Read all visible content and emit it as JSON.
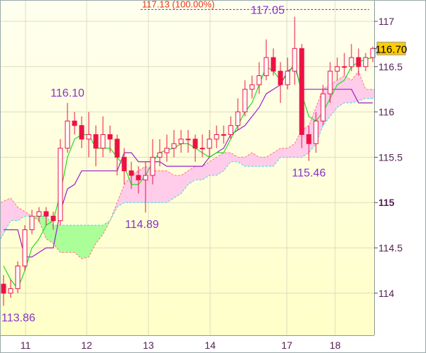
{
  "chart_data": {
    "type": "candlestick",
    "title": "",
    "ylim": [
      113.65,
      117.23
    ],
    "y_ticks": [
      {
        "value": 117,
        "label": "117",
        "bold": false
      },
      {
        "value": 116.5,
        "label": "116.5",
        "bold": false
      },
      {
        "value": 116,
        "label": "116",
        "bold": false
      },
      {
        "value": 115.5,
        "label": "115.5",
        "bold": false
      },
      {
        "value": 115,
        "label": "115",
        "bold": true
      },
      {
        "value": 114.5,
        "label": "114.5",
        "bold": false
      },
      {
        "value": 114,
        "label": "114",
        "bold": false
      }
    ],
    "x_ticks": [
      {
        "index": 3.1,
        "label": "11"
      },
      {
        "index": 11.7,
        "label": "12"
      },
      {
        "index": 20.4,
        "label": "13"
      },
      {
        "index": 29.1,
        "label": "14"
      },
      {
        "index": 39.9,
        "label": "17"
      },
      {
        "index": 46.7,
        "label": "18"
      }
    ],
    "grid": true,
    "candles": [
      [
        114.1,
        114.2,
        113.86,
        114.0
      ],
      [
        114.0,
        114.15,
        113.95,
        114.05
      ],
      [
        114.05,
        114.35,
        114.0,
        114.3
      ],
      [
        114.3,
        114.75,
        114.25,
        114.7
      ],
      [
        114.7,
        114.92,
        114.65,
        114.85
      ],
      [
        114.85,
        114.95,
        114.78,
        114.9
      ],
      [
        114.9,
        114.95,
        114.75,
        114.85
      ],
      [
        114.85,
        114.9,
        114.7,
        114.8
      ],
      [
        114.8,
        115.7,
        114.75,
        115.6
      ],
      [
        115.6,
        116.1,
        115.55,
        115.9
      ],
      [
        115.9,
        116.0,
        115.75,
        115.85
      ],
      [
        115.85,
        115.95,
        115.6,
        115.7
      ],
      [
        115.7,
        116.0,
        115.5,
        115.75
      ],
      [
        115.75,
        115.85,
        115.4,
        115.6
      ],
      [
        115.6,
        115.95,
        115.5,
        115.75
      ],
      [
        115.75,
        115.85,
        115.55,
        115.7
      ],
      [
        115.7,
        115.75,
        115.3,
        115.5
      ],
      [
        115.5,
        115.6,
        115.2,
        115.35
      ],
      [
        115.35,
        115.45,
        115.15,
        115.3
      ],
      [
        115.3,
        115.4,
        115.1,
        115.25
      ],
      [
        115.25,
        115.45,
        114.89,
        115.3
      ],
      [
        115.3,
        115.7,
        115.2,
        115.5
      ],
      [
        115.5,
        115.7,
        115.4,
        115.55
      ],
      [
        115.55,
        115.75,
        115.45,
        115.6
      ],
      [
        115.6,
        115.8,
        115.5,
        115.65
      ],
      [
        115.65,
        115.8,
        115.55,
        115.7
      ],
      [
        115.7,
        115.8,
        115.55,
        115.7
      ],
      [
        115.7,
        115.75,
        115.45,
        115.6
      ],
      [
        115.6,
        115.75,
        115.5,
        115.6
      ],
      [
        115.6,
        115.8,
        115.5,
        115.7
      ],
      [
        115.7,
        115.85,
        115.6,
        115.75
      ],
      [
        115.75,
        115.85,
        115.65,
        115.75
      ],
      [
        115.75,
        115.95,
        115.7,
        115.85
      ],
      [
        115.85,
        116.15,
        115.8,
        116.0
      ],
      [
        116.0,
        116.35,
        115.95,
        116.25
      ],
      [
        116.25,
        116.4,
        116.15,
        116.3
      ],
      [
        116.3,
        116.55,
        116.2,
        116.4
      ],
      [
        116.4,
        116.8,
        116.35,
        116.6
      ],
      [
        116.6,
        116.7,
        116.4,
        116.45
      ],
      [
        116.45,
        116.55,
        116.1,
        116.3
      ],
      [
        116.3,
        116.6,
        116.25,
        116.45
      ],
      [
        116.45,
        117.05,
        116.3,
        116.7
      ],
      [
        116.7,
        116.75,
        115.6,
        115.75
      ],
      [
        115.75,
        115.85,
        115.46,
        115.65
      ],
      [
        115.65,
        116.0,
        115.55,
        115.9
      ],
      [
        115.9,
        116.3,
        115.85,
        116.2
      ],
      [
        116.2,
        116.55,
        116.1,
        116.45
      ],
      [
        116.45,
        116.6,
        116.35,
        116.5
      ],
      [
        116.5,
        116.65,
        116.4,
        116.5
      ],
      [
        116.5,
        116.75,
        116.45,
        116.6
      ],
      [
        116.6,
        116.7,
        116.4,
        116.5
      ],
      [
        116.5,
        116.65,
        116.45,
        116.6
      ],
      [
        116.6,
        116.72,
        116.55,
        116.7
      ]
    ],
    "tenkan": [
      114.3,
      114.15,
      114.05,
      114.25,
      114.5,
      114.6,
      114.75,
      114.8,
      115.1,
      115.5,
      115.7,
      115.75,
      115.75,
      115.6,
      115.6,
      115.6,
      115.5,
      115.4,
      115.2,
      115.2,
      115.3,
      115.45,
      115.55,
      115.58,
      115.6,
      115.65,
      115.65,
      115.6,
      115.55,
      115.5,
      115.55,
      115.55,
      115.7,
      115.85,
      116.0,
      116.1,
      116.3,
      116.5,
      116.45,
      116.35,
      116.4,
      116.55,
      116.2,
      115.95,
      115.9,
      116.0,
      116.15,
      116.3,
      116.35,
      116.5,
      116.55,
      116.58,
      116.6
    ],
    "kijun": [
      114.7,
      114.7,
      114.7,
      114.4,
      114.4,
      114.45,
      114.5,
      114.5,
      114.9,
      115.15,
      115.2,
      115.35,
      115.35,
      115.35,
      115.35,
      115.35,
      115.35,
      115.55,
      115.55,
      115.45,
      115.45,
      115.45,
      115.45,
      115.4,
      115.4,
      115.4,
      115.4,
      115.4,
      115.4,
      115.5,
      115.55,
      115.6,
      115.75,
      115.8,
      115.85,
      115.95,
      116.05,
      116.2,
      116.25,
      116.3,
      116.45,
      116.5,
      116.25,
      116.25,
      116.25,
      116.25,
      116.25,
      116.25,
      116.25,
      116.25,
      116.1,
      116.1,
      116.1
    ],
    "senkou_a": [
      115.0,
      115.05,
      114.95,
      114.9,
      114.85,
      114.8,
      114.6,
      114.55,
      114.45,
      114.45,
      114.45,
      114.38,
      114.4,
      114.55,
      114.65,
      114.8,
      115.0,
      115.2,
      115.3,
      115.35,
      115.4,
      115.35,
      115.35,
      115.35,
      115.3,
      115.3,
      115.35,
      115.4,
      115.4,
      115.45,
      115.5,
      115.55,
      115.55,
      115.5,
      115.5,
      115.55,
      115.5,
      115.5,
      115.55,
      115.6,
      115.6,
      115.65,
      115.8,
      115.85,
      116.05,
      116.25,
      116.3,
      116.35,
      116.4,
      116.35,
      116.45,
      116.25,
      116.25
    ],
    "senkou_b": [
      114.6,
      114.8,
      114.8,
      114.85,
      114.85,
      114.85,
      114.85,
      114.75,
      114.75,
      114.75,
      114.75,
      114.75,
      114.75,
      114.75,
      114.75,
      114.8,
      114.95,
      115.0,
      115.0,
      115.0,
      115.0,
      115.0,
      115.0,
      115.0,
      115.05,
      115.1,
      115.2,
      115.25,
      115.25,
      115.3,
      115.3,
      115.35,
      115.45,
      115.45,
      115.4,
      115.4,
      115.4,
      115.4,
      115.4,
      115.5,
      115.5,
      115.5,
      115.5,
      115.55,
      115.65,
      115.85,
      115.95,
      116.05,
      116.1,
      116.1,
      116.12,
      116.15,
      116.15
    ],
    "annotations": [
      {
        "index": 9,
        "value": 116.1,
        "label": "116.10",
        "pos": "above"
      },
      {
        "index": 41,
        "value": 117.05,
        "label": "117.05",
        "pos": "above-left"
      },
      {
        "index": 0,
        "value": 113.86,
        "label": "113.86",
        "pos": "below"
      },
      {
        "index": 20,
        "value": 114.89,
        "label": "114.89",
        "pos": "left"
      },
      {
        "index": 43,
        "value": 115.46,
        "label": "115.46",
        "pos": "below"
      }
    ],
    "max_line": {
      "value": 117.13,
      "label": "117.13 (100.00%)"
    },
    "current_price": {
      "value": 116.7,
      "label": "116.70"
    },
    "colors": {
      "candle": "#ee1144",
      "tenkan": "#22dd22",
      "kijun": "#9922cc",
      "cloud_bull": "#ffccea",
      "cloud_bear": "#aaff99",
      "span_a": "#ff7777",
      "span_b": "#33ddee",
      "annotation": "#8833cc",
      "max_line": "#ee3311",
      "badge": "#ffcc00"
    }
  }
}
